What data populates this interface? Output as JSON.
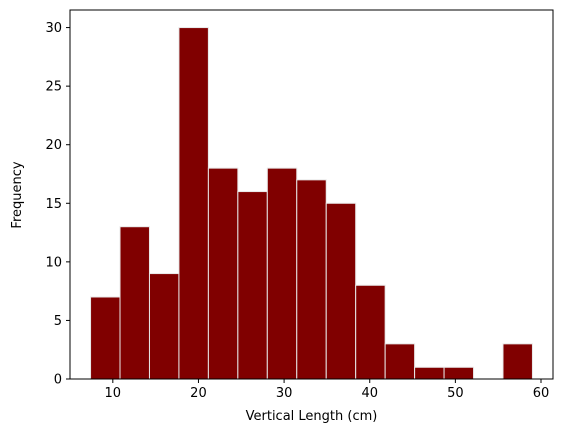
{
  "chart_data": {
    "type": "bar",
    "title": "",
    "xlabel": "Vertical Length (cm)",
    "ylabel": "Frequency",
    "bin_edges": [
      7.4,
      10.84,
      14.28,
      17.72,
      21.16,
      24.6,
      28.04,
      31.48,
      34.92,
      38.36,
      41.8,
      45.24,
      48.68,
      52.12,
      55.56,
      59.0
    ],
    "values": [
      7,
      13,
      9,
      30,
      18,
      16,
      18,
      17,
      15,
      8,
      3,
      1,
      1,
      0,
      3
    ],
    "xlim": [
      5.0,
      61.4
    ],
    "ylim": [
      0,
      31.5
    ],
    "xticks": [
      10,
      20,
      30,
      40,
      50,
      60
    ],
    "yticks": [
      0,
      5,
      10,
      15,
      20,
      25,
      30
    ],
    "grid": false,
    "bar_color": "#800000",
    "edge_color": "#e8e8e8"
  }
}
